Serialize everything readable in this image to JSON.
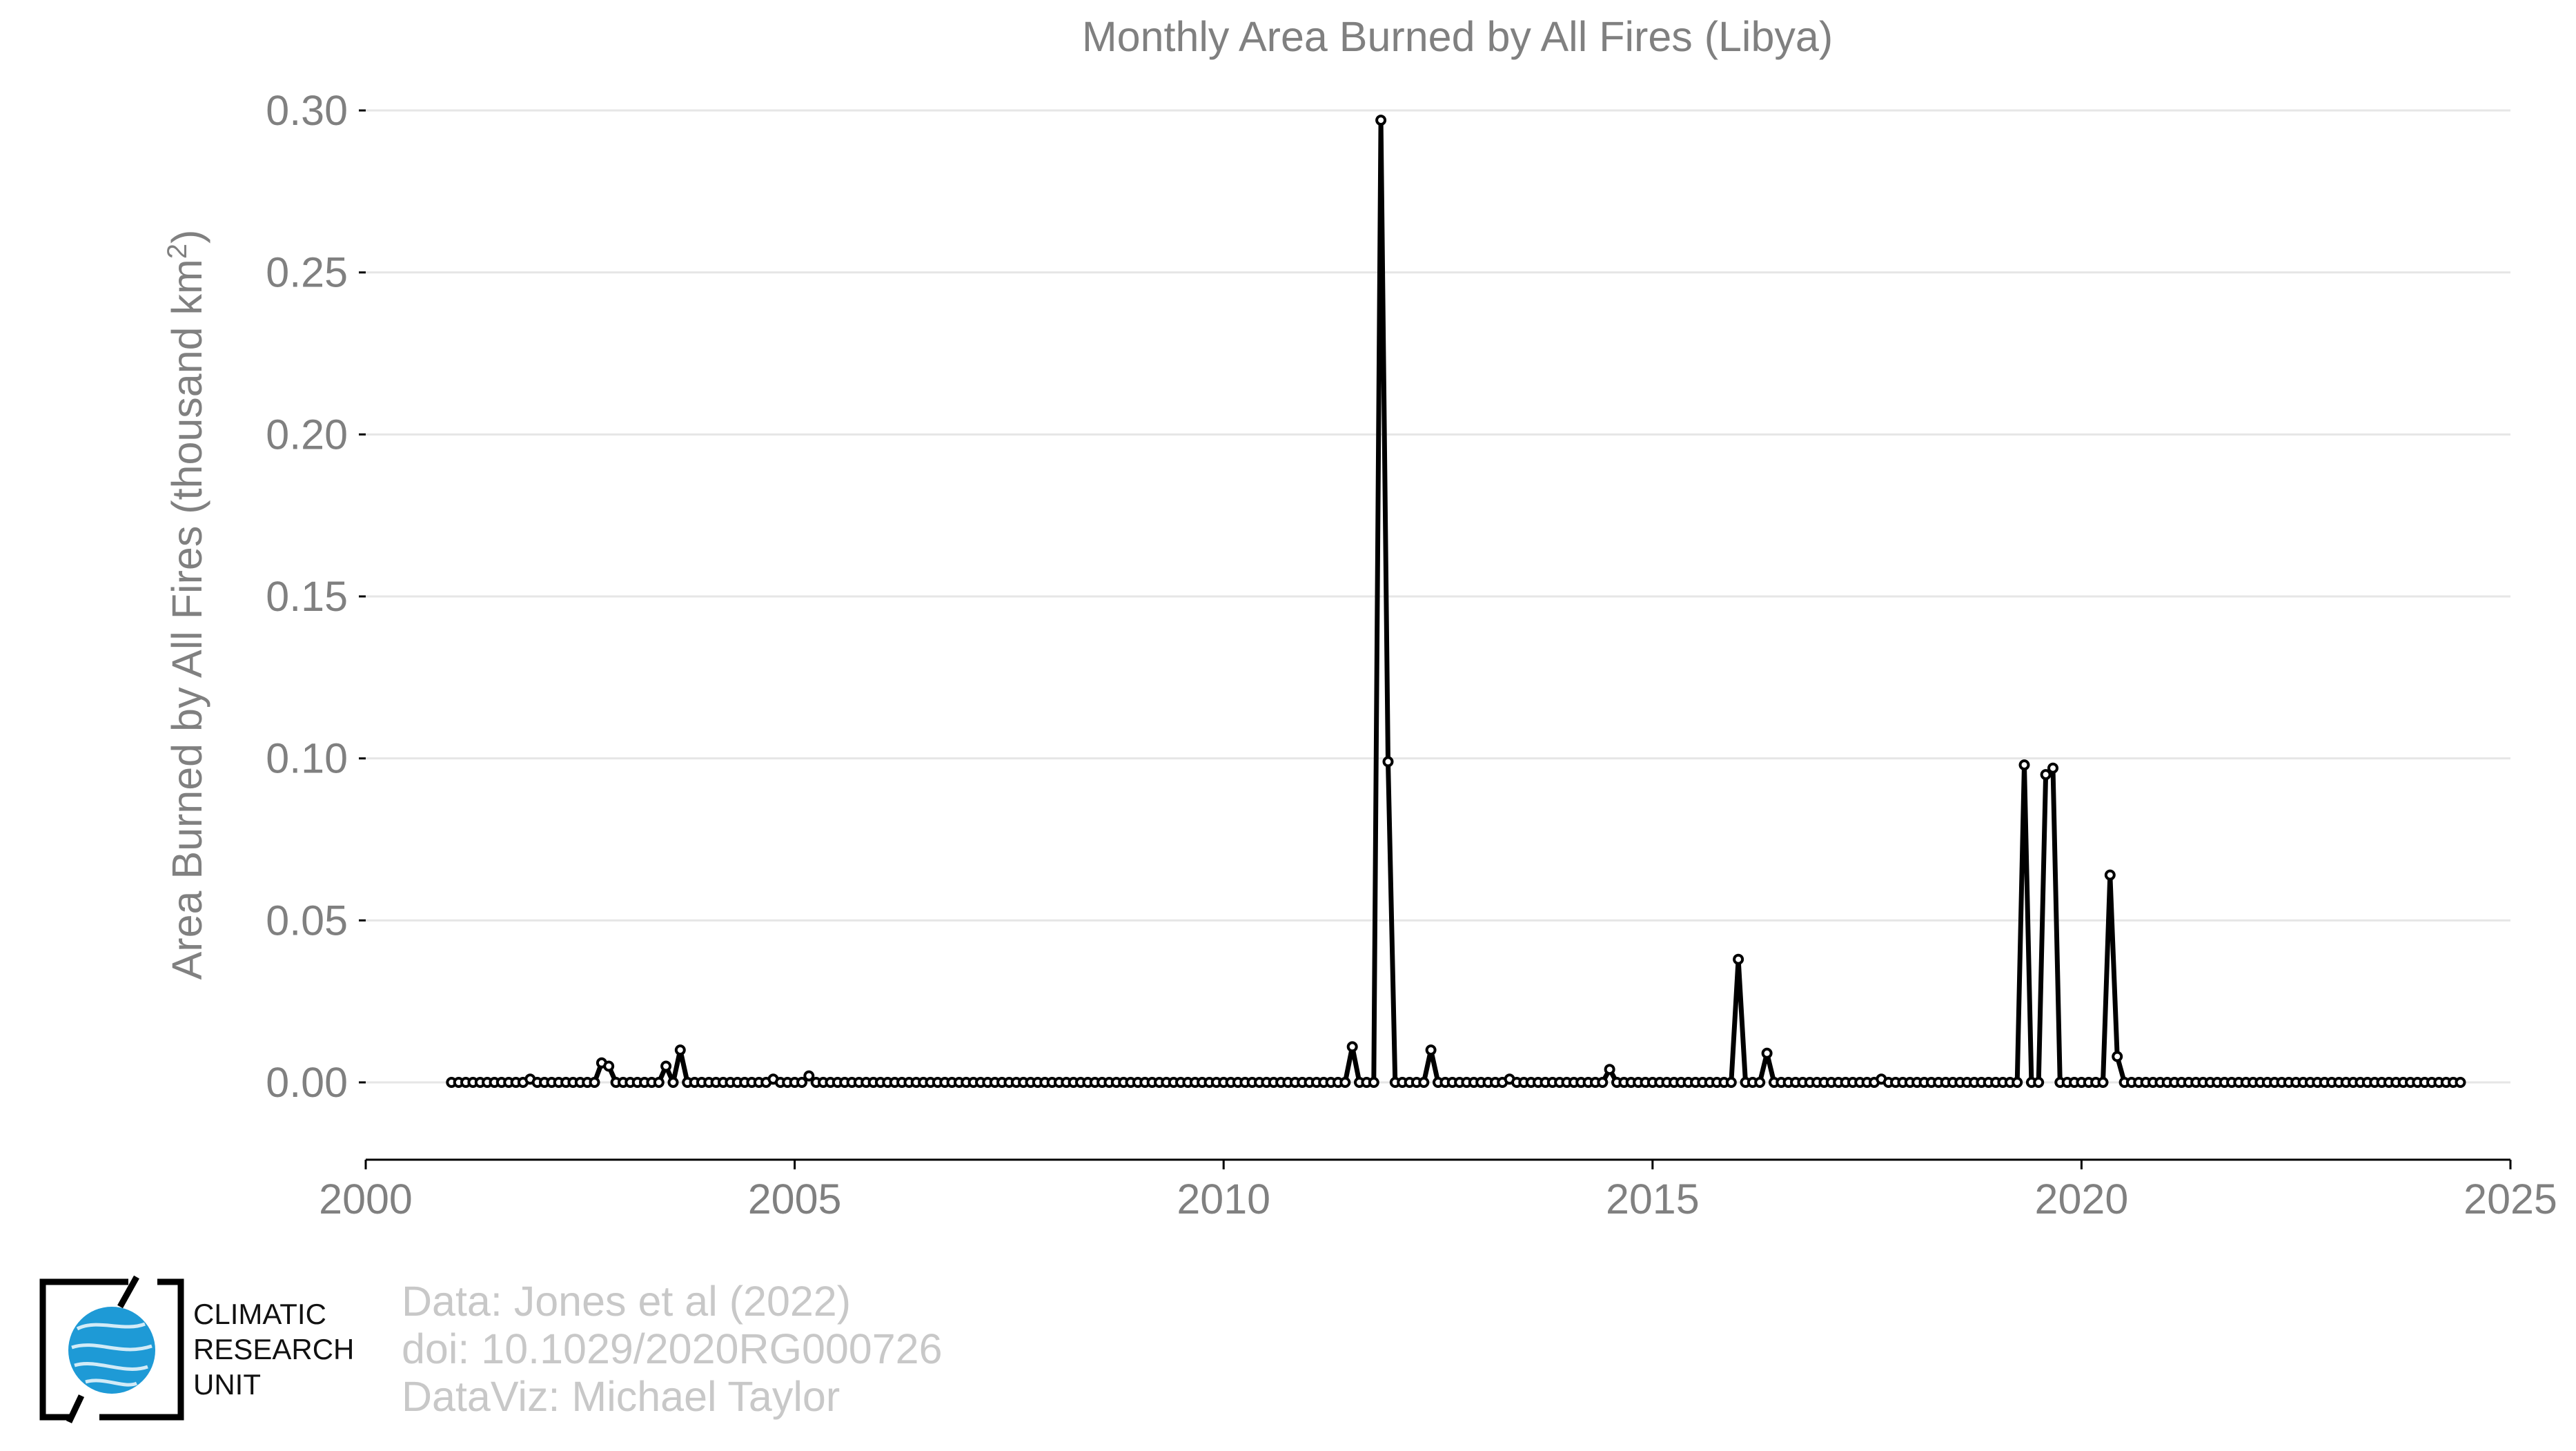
{
  "chart_data": {
    "type": "line",
    "title": "Monthly Area Burned by All Fires (Libya)",
    "ylabel": "Area Burned by All Fires (thousand km",
    "ylabel_sup": "2",
    "ylabel_close": ")",
    "xlabel": "",
    "xlim": [
      2000,
      2025
    ],
    "ylim": [
      0,
      0.3
    ],
    "x_ticks": [
      2000,
      2005,
      2010,
      2015,
      2020,
      2025
    ],
    "x_tick_labels": [
      "2000",
      "2005",
      "2010",
      "2015",
      "2020",
      "2025"
    ],
    "y_ticks": [
      0,
      0.05,
      0.1,
      0.15,
      0.2,
      0.25,
      0.3
    ],
    "y_tick_labels": [
      "0.00",
      "0.05",
      "0.10",
      "0.15",
      "0.20",
      "0.25",
      "0.30"
    ],
    "grid": true,
    "start": "2001-01",
    "frequency": "monthly",
    "series": [
      {
        "values": [
          0,
          0,
          0,
          0,
          0,
          0,
          0,
          0,
          0,
          0,
          0,
          0.001,
          0,
          0,
          0,
          0,
          0,
          0,
          0,
          0,
          0,
          0.006,
          0.005,
          0,
          0,
          0,
          0,
          0,
          0,
          0,
          0.005,
          0,
          0.01,
          0,
          0,
          0,
          0,
          0,
          0,
          0,
          0,
          0,
          0,
          0,
          0,
          0.001,
          0,
          0,
          0,
          0,
          0.002,
          0,
          0,
          0,
          0,
          0,
          0,
          0,
          0,
          0,
          0,
          0,
          0,
          0,
          0,
          0,
          0,
          0,
          0,
          0,
          0,
          0,
          0,
          0,
          0,
          0,
          0,
          0,
          0,
          0,
          0,
          0,
          0,
          0,
          0,
          0,
          0,
          0,
          0,
          0,
          0,
          0,
          0,
          0,
          0,
          0,
          0,
          0,
          0,
          0,
          0,
          0,
          0,
          0,
          0,
          0,
          0,
          0,
          0,
          0,
          0,
          0,
          0,
          0,
          0,
          0,
          0,
          0,
          0,
          0,
          0,
          0,
          0,
          0,
          0,
          0,
          0.011,
          0,
          0,
          0,
          0.297,
          0.099,
          0,
          0,
          0,
          0,
          0,
          0.01,
          0,
          0,
          0,
          0,
          0,
          0,
          0,
          0,
          0,
          0,
          0.001,
          0,
          0,
          0,
          0,
          0,
          0,
          0,
          0,
          0,
          0,
          0,
          0,
          0,
          0.004,
          0,
          0,
          0,
          0,
          0,
          0,
          0,
          0,
          0,
          0,
          0,
          0,
          0,
          0,
          0,
          0,
          0,
          0.038,
          0,
          0,
          0,
          0.009,
          0,
          0,
          0,
          0,
          0,
          0,
          0,
          0,
          0,
          0,
          0,
          0,
          0,
          0,
          0,
          0.001,
          0,
          0,
          0,
          0,
          0,
          0,
          0,
          0,
          0,
          0,
          0,
          0,
          0,
          0,
          0,
          0,
          0,
          0,
          0,
          0.098,
          0,
          0,
          0.095,
          0.097,
          0,
          0,
          0,
          0,
          0,
          0,
          0,
          0.064,
          0.008,
          0,
          0,
          0,
          0,
          0,
          0,
          0,
          0,
          0,
          0,
          0,
          0,
          0,
          0,
          0,
          0,
          0,
          0,
          0,
          0,
          0,
          0,
          0,
          0,
          0,
          0,
          0,
          0,
          0,
          0,
          0,
          0,
          0,
          0,
          0,
          0,
          0,
          0,
          0,
          0,
          0,
          0,
          0,
          0,
          0,
          0,
          0,
          0
        ]
      }
    ]
  },
  "credits": {
    "line1": "Data: Jones et al (2022)",
    "line2": "doi: 10.1029/2020RG000726",
    "line3": "DataViz: Michael Taylor"
  },
  "logo": {
    "line1": "CLIMATIC",
    "line2": "RESEARCH",
    "line3": "UNIT",
    "globe_color": "#1e9ad6"
  }
}
